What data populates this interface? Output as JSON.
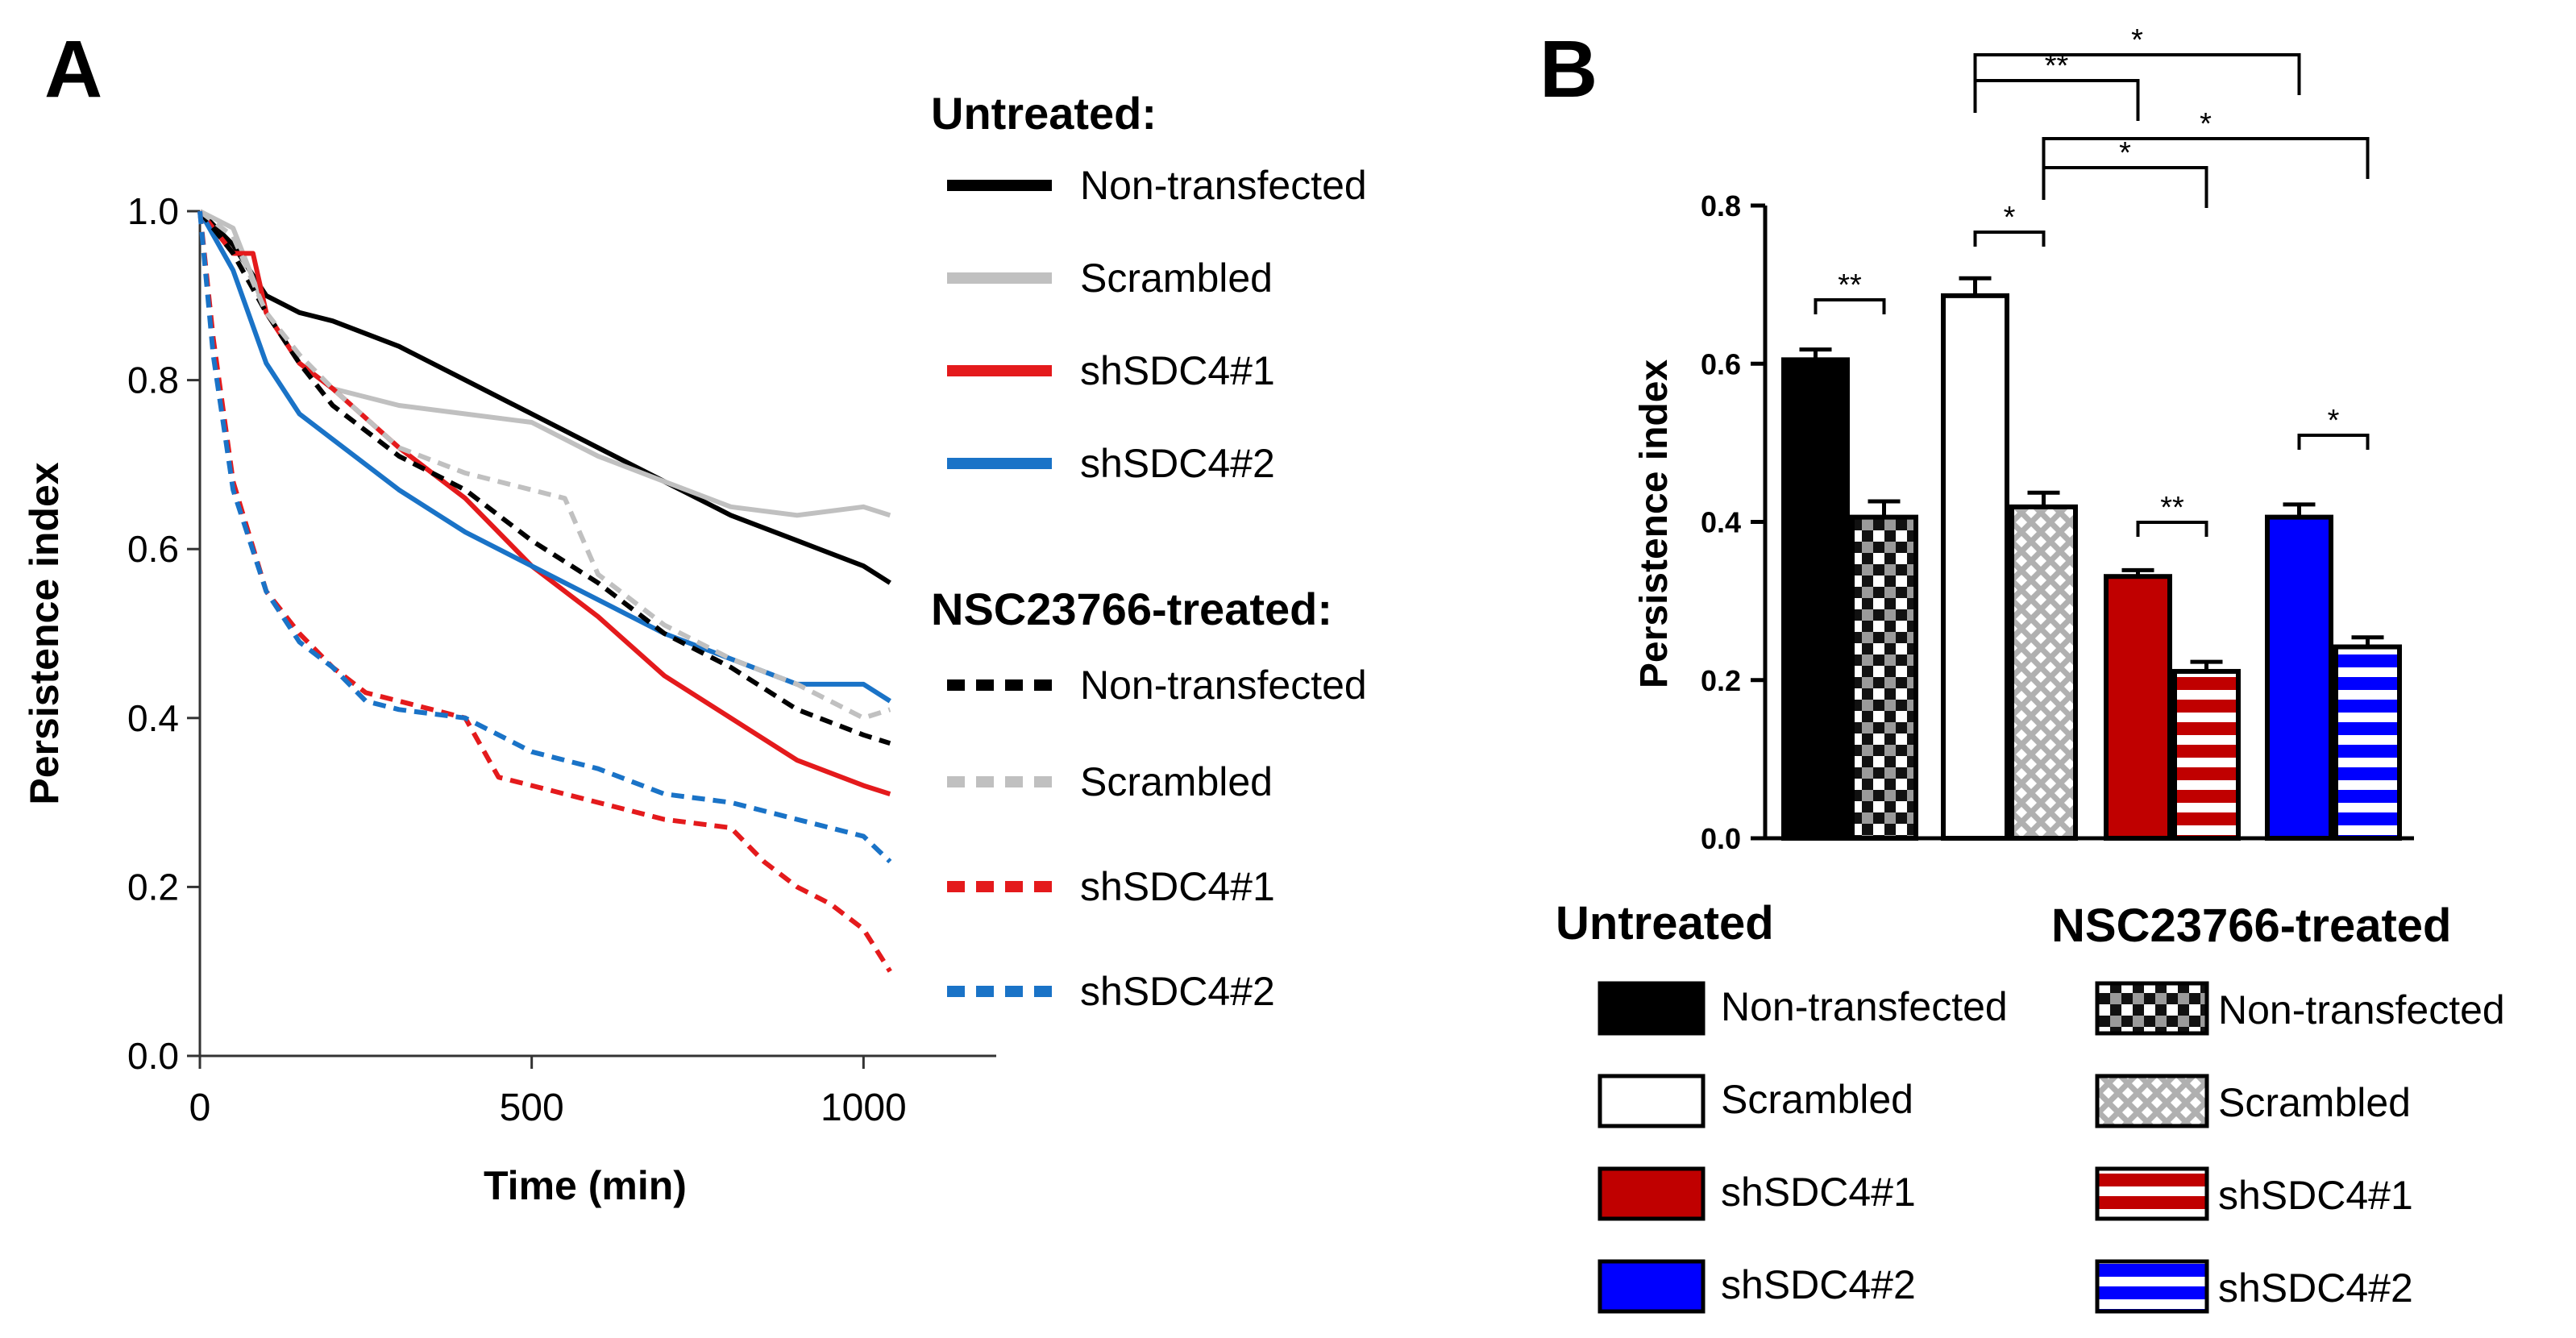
{
  "figure": {
    "panelA_letter": "A",
    "panelB_letter": "B"
  },
  "chart_data": [
    {
      "type": "line",
      "panel": "A",
      "title": "",
      "xlabel": "Time (min)",
      "ylabel": "Persistence index",
      "xlim": [
        0,
        1200
      ],
      "ylim": [
        0,
        1.0
      ],
      "xticks": [
        0,
        500,
        1000
      ],
      "xtick_labels": [
        "0",
        "500",
        "1000"
      ],
      "yticks": [
        0,
        0.2,
        0.4,
        0.6,
        0.8,
        1.0
      ],
      "ytick_labels": [
        "0.0",
        "0.2",
        "0.4",
        "0.6",
        "0.8",
        "1.0"
      ],
      "legend": {
        "position": "right",
        "group_titles": [
          "Untreated:",
          "NSC23766-treated:"
        ]
      },
      "series": [
        {
          "name": "Non-transfected",
          "group": "Untreated",
          "color": "#000000",
          "dash": false,
          "x": [
            0,
            50,
            100,
            150,
            200,
            300,
            400,
            500,
            600,
            700,
            800,
            900,
            1000,
            1040
          ],
          "y": [
            1.0,
            0.96,
            0.9,
            0.88,
            0.87,
            0.84,
            0.8,
            0.76,
            0.72,
            0.68,
            0.64,
            0.61,
            0.58,
            0.56
          ]
        },
        {
          "name": "Scrambled",
          "group": "Untreated",
          "color": "#c0c0c0",
          "dash": false,
          "x": [
            0,
            50,
            100,
            150,
            200,
            300,
            400,
            500,
            600,
            700,
            800,
            900,
            1000,
            1040
          ],
          "y": [
            1.0,
            0.98,
            0.88,
            0.82,
            0.79,
            0.77,
            0.76,
            0.75,
            0.71,
            0.68,
            0.65,
            0.64,
            0.65,
            0.64
          ]
        },
        {
          "name": "shSDC4#1",
          "group": "Untreated",
          "color": "#e41a1c",
          "dash": false,
          "x": [
            0,
            50,
            80,
            100,
            150,
            200,
            300,
            400,
            500,
            600,
            700,
            800,
            900,
            1000,
            1040
          ],
          "y": [
            1.0,
            0.95,
            0.95,
            0.88,
            0.82,
            0.79,
            0.72,
            0.66,
            0.58,
            0.52,
            0.45,
            0.4,
            0.35,
            0.32,
            0.31
          ]
        },
        {
          "name": "shSDC4#2",
          "group": "Untreated",
          "color": "#1a73c7",
          "dash": false,
          "x": [
            0,
            50,
            100,
            150,
            200,
            300,
            400,
            500,
            600,
            700,
            800,
            900,
            1000,
            1040
          ],
          "y": [
            1.0,
            0.93,
            0.82,
            0.76,
            0.73,
            0.67,
            0.62,
            0.58,
            0.54,
            0.5,
            0.47,
            0.44,
            0.44,
            0.42
          ]
        },
        {
          "name": "Non-transfected",
          "group": "NSC23766-treated",
          "color": "#000000",
          "dash": true,
          "x": [
            0,
            50,
            100,
            150,
            200,
            300,
            400,
            500,
            600,
            700,
            800,
            900,
            1000,
            1040
          ],
          "y": [
            1.0,
            0.95,
            0.88,
            0.82,
            0.77,
            0.71,
            0.67,
            0.61,
            0.56,
            0.5,
            0.46,
            0.41,
            0.38,
            0.37
          ]
        },
        {
          "name": "Scrambled",
          "group": "NSC23766-treated",
          "color": "#c0c0c0",
          "dash": true,
          "x": [
            0,
            50,
            100,
            150,
            200,
            300,
            400,
            500,
            550,
            600,
            700,
            800,
            900,
            1000,
            1040
          ],
          "y": [
            1.0,
            0.97,
            0.88,
            0.83,
            0.79,
            0.72,
            0.69,
            0.67,
            0.66,
            0.57,
            0.51,
            0.47,
            0.44,
            0.4,
            0.41
          ]
        },
        {
          "name": "shSDC4#1",
          "group": "NSC23766-treated",
          "color": "#e41a1c",
          "dash": true,
          "x": [
            0,
            20,
            50,
            100,
            150,
            200,
            250,
            300,
            400,
            450,
            500,
            600,
            700,
            800,
            850,
            900,
            950,
            1000,
            1040
          ],
          "y": [
            1.0,
            0.85,
            0.68,
            0.55,
            0.5,
            0.46,
            0.43,
            0.42,
            0.4,
            0.33,
            0.32,
            0.3,
            0.28,
            0.27,
            0.23,
            0.2,
            0.18,
            0.15,
            0.1
          ]
        },
        {
          "name": "shSDC4#2",
          "group": "NSC23766-treated",
          "color": "#1a73c7",
          "dash": true,
          "x": [
            0,
            20,
            50,
            100,
            150,
            200,
            250,
            300,
            400,
            500,
            600,
            700,
            800,
            900,
            1000,
            1040
          ],
          "y": [
            1.0,
            0.83,
            0.67,
            0.55,
            0.49,
            0.46,
            0.42,
            0.41,
            0.4,
            0.36,
            0.34,
            0.31,
            0.3,
            0.28,
            0.26,
            0.23
          ]
        }
      ]
    },
    {
      "type": "bar",
      "panel": "B",
      "title": "",
      "xlabel": "",
      "ylabel": "Persistence index",
      "ylim": [
        0,
        0.8
      ],
      "yticks": [
        0,
        0.2,
        0.4,
        0.6,
        0.8
      ],
      "ytick_labels": [
        "0.0",
        "0.2",
        "0.4",
        "0.6",
        "0.8"
      ],
      "categories": [
        "Non-transfected",
        "Scrambled",
        "shSDC4#1",
        "shSDC4#2"
      ],
      "series": [
        {
          "name": "Untreated",
          "values": [
            0.605,
            0.686,
            0.331,
            0.406
          ],
          "errors": [
            0.013,
            0.022,
            0.008,
            0.016
          ]
        },
        {
          "name": "NSC23766-treated",
          "values": [
            0.406,
            0.419,
            0.211,
            0.242
          ],
          "errors": [
            0.02,
            0.018,
            0.012,
            0.012
          ]
        }
      ],
      "bar_colors": [
        "#000000",
        "#ffffff",
        "#c00000",
        "#0000ff"
      ],
      "treated_patterns": [
        "checker",
        "crosshatch",
        "stripes",
        "stripes"
      ],
      "significance": [
        {
          "from": [
            0,
            0
          ],
          "to": [
            0,
            1
          ],
          "label": "**"
        },
        {
          "from": [
            1,
            0
          ],
          "to": [
            1,
            1
          ],
          "label": "*"
        },
        {
          "from": [
            2,
            0
          ],
          "to": [
            2,
            1
          ],
          "label": "**"
        },
        {
          "from": [
            3,
            0
          ],
          "to": [
            3,
            1
          ],
          "label": "*"
        },
        {
          "from": [
            1,
            0
          ],
          "to": [
            2,
            0
          ],
          "label": "**"
        },
        {
          "from": [
            1,
            0
          ],
          "to": [
            3,
            0
          ],
          "label": "*"
        },
        {
          "from": [
            1,
            1
          ],
          "to": [
            2,
            1
          ],
          "label": "*"
        },
        {
          "from": [
            1,
            1
          ],
          "to": [
            3,
            1
          ],
          "label": "*"
        }
      ],
      "legend": {
        "position": "bottom",
        "group_titles": [
          "Untreated",
          "NSC23766-treated"
        ],
        "items": [
          "Non-transfected",
          "Scrambled",
          "shSDC4#1",
          "shSDC4#2"
        ]
      }
    }
  ]
}
